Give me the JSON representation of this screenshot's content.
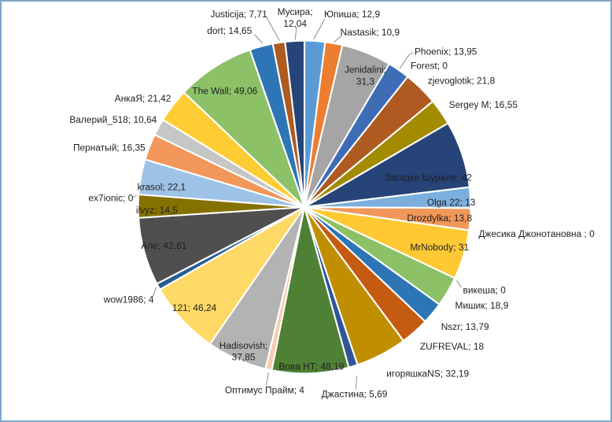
{
  "frame": {
    "background": "#FFFFFF",
    "border_color": "#7FA8C9"
  },
  "labels_style": {
    "text_color": "#1F1F1F",
    "leader_color": "#8C8C8C"
  },
  "chart_data": {
    "type": "pie",
    "title": "",
    "legend": "none",
    "direction": "clockwise",
    "start_angle_deg": 0,
    "total": 647.13,
    "label_format": "name; value (comma decimal separator)",
    "points": [
      {
        "name": "Юпиша",
        "value": 12.9,
        "label": "Юпиша; 12,9",
        "color": "#5B9BD5"
      },
      {
        "name": "Nastasik",
        "value": 10.9,
        "label": "Nastasik; 10,9",
        "color": "#ED7D31"
      },
      {
        "name": "Jenidalini",
        "value": 31.3,
        "label": "Jenidalini; 31,3",
        "color": "#A5A5A5"
      },
      {
        "name": "Phoenix",
        "value": 13.95,
        "label": "Phoenix; 13,95",
        "color": "#3E6CB5"
      },
      {
        "name": "Forest",
        "value": 0,
        "label": "Forest; 0",
        "color": "#FFC000"
      },
      {
        "name": "zjevoglotik",
        "value": 21.8,
        "label": "zjevoglotik; 21,8",
        "color": "#AE5A21"
      },
      {
        "name": "Sergey M",
        "value": 16.55,
        "label": "Sergey M; 16,55",
        "color": "#A38B00"
      },
      {
        "name": "Загадки Шурале",
        "value": 42,
        "label": "Загадки Шурале; 42",
        "color": "#264478"
      },
      {
        "name": "Olga 22",
        "value": 13,
        "label": "Olga 22; 13",
        "color": "#7CAFDD"
      },
      {
        "name": "Drozdylka",
        "value": 13.8,
        "label": "Drozdylka; 13,8",
        "color": "#F1975A"
      },
      {
        "name": "Джесика Джонотановна ",
        "value": 0,
        "label": "Джесика Джонотановна ; 0",
        "color": "#B7B7B7"
      },
      {
        "name": "MrNobody",
        "value": 31,
        "label": "MrNobody; 31",
        "color": "#FFC933"
      },
      {
        "name": "викеша",
        "value": 0,
        "label": "викеша; 0",
        "color": "#698ED0"
      },
      {
        "name": "Мишик",
        "value": 18.9,
        "label": "Мишик; 18,9",
        "color": "#8CC168"
      },
      {
        "name": "Nszr",
        "value": 13.79,
        "label": "Nszr; 13,79",
        "color": "#2E75B6"
      },
      {
        "name": "ZUFREVAL",
        "value": 18,
        "label": "ZUFREVAL; 18",
        "color": "#C55A11"
      },
      {
        "name": "игоряшкаNS",
        "value": 32.19,
        "label": "игоряшкаNS; 32,19",
        "color": "#BF8F00"
      },
      {
        "name": "Джастина",
        "value": 5.69,
        "label": "Джастина; 5,69",
        "color": "#2F5597"
      },
      {
        "name": "Вова НТ",
        "value": 48.19,
        "label": "Вова НТ; 48,19",
        "color": "#4E8035"
      },
      {
        "name": "Оптимус Прайм",
        "value": 4,
        "label": "Оптимус Прайм; 4",
        "color": "#F8CBAD"
      },
      {
        "name": "Hadisovish",
        "value": 37.85,
        "label": "Hadisovish; 37,85",
        "color": "#B3B3B3"
      },
      {
        "name": "121",
        "value": 46.24,
        "label": "121; 46,24",
        "color": "#FFD966"
      },
      {
        "name": "wow1986",
        "value": 4,
        "label": "wow1986; 4",
        "color": "#255E91"
      },
      {
        "name": "Але",
        "value": 42.61,
        "label": "Але; 42,61",
        "color": "#4F4F4F"
      },
      {
        "name": "ilvyz",
        "value": 14.5,
        "label": "ilvyz; 14,5",
        "color": "#857100"
      },
      {
        "name": "ex7ionic",
        "value": 0,
        "label": "ex7ionic; 0",
        "color": "#9DC3E6"
      },
      {
        "name": "krasol",
        "value": 22.1,
        "label": "krasol; 22,1",
        "color": "#9DC3E6"
      },
      {
        "name": "Пернатый",
        "value": 16.35,
        "label": "Пернатый; 16,35",
        "color": "#F1975A"
      },
      {
        "name": "Валерий_518",
        "value": 10.64,
        "label": "Валерий_518; 10,64",
        "color": "#C6C6C6"
      },
      {
        "name": "АнкаЯ",
        "value": 21.42,
        "label": "АнкаЯ; 21,42",
        "color": "#FFCD33"
      },
      {
        "name": "The Wall",
        "value": 49.06,
        "label": "The Wall; 49,06",
        "color": "#8CC168"
      },
      {
        "name": "dort",
        "value": 14.65,
        "label": "dort; 14,65",
        "color": "#2E75B6"
      },
      {
        "name": "Justicija",
        "value": 7.71,
        "label": "Justicija; 7,71",
        "color": "#AE5A21"
      },
      {
        "name": "Мусира",
        "value": 12.04,
        "label": "Мусира; 12,04",
        "color": "#264478"
      }
    ]
  }
}
